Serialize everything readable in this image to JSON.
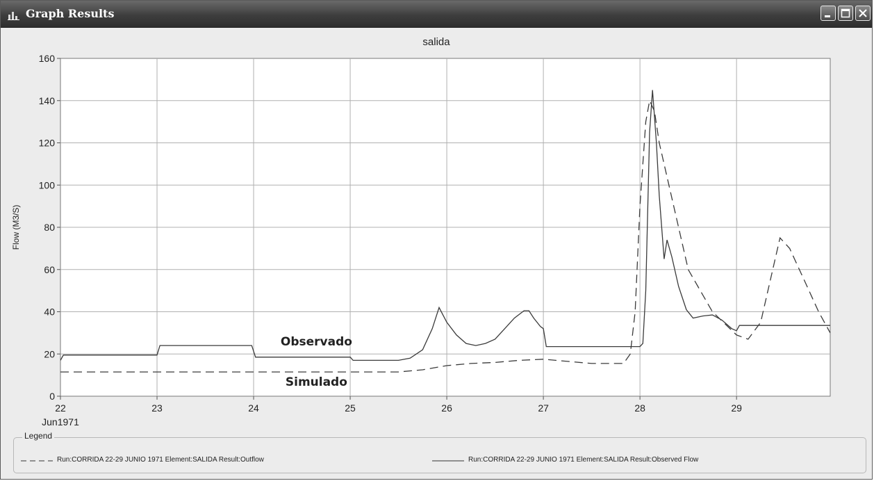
{
  "window": {
    "title": "Graph Results",
    "controls": {
      "minimize": "minimize",
      "maximize": "maximize",
      "close": "close"
    }
  },
  "legend": {
    "title": "Legend",
    "items": [
      {
        "label": "Run:CORRIDA 22-29 JUNIO 1971 Element:SALIDA Result:Outflow",
        "style": "dashed"
      },
      {
        "label": "Run:CORRIDA 22-29 JUNIO 1971 Element:SALIDA Result:Observed Flow",
        "style": "solid"
      }
    ]
  },
  "chart_data": {
    "type": "line",
    "title": "salida",
    "xlabel": "",
    "ylabel": "Flow (M3/S)",
    "x_tick_labels": [
      "22",
      "23",
      "24",
      "25",
      "26",
      "27",
      "28",
      "29"
    ],
    "x_sub_label": "Jun1971",
    "xlim": [
      22,
      29.97
    ],
    "ylim": [
      0,
      160
    ],
    "y_ticks": [
      0,
      20,
      40,
      60,
      80,
      100,
      120,
      140,
      160
    ],
    "grid": true,
    "annotations": [
      {
        "text": "Observado",
        "x": 24.65,
        "y": 24
      },
      {
        "text": "Simulado",
        "x": 24.65,
        "y": 5
      }
    ],
    "series": [
      {
        "name": "Run:CORRIDA 22-29 JUNIO 1971 Element:SALIDA Result:Outflow",
        "style": "dashed",
        "x": [
          22,
          25.5,
          25.75,
          26.0,
          26.25,
          26.5,
          26.75,
          27.0,
          27.25,
          27.5,
          27.83,
          27.9,
          27.95,
          28.0,
          28.06,
          28.1,
          28.15,
          28.2,
          28.3,
          28.5,
          28.75,
          29.0,
          29.12,
          29.25,
          29.35,
          29.45,
          29.55,
          29.7,
          29.85,
          29.97
        ],
        "y": [
          11.5,
          11.5,
          12.5,
          14.5,
          15.5,
          16,
          17,
          17.5,
          16.5,
          15.5,
          15.5,
          20,
          40,
          90,
          130,
          140,
          135,
          120,
          100,
          60,
          40,
          29,
          27,
          35,
          55,
          75,
          70,
          55,
          40,
          30
        ]
      },
      {
        "name": "Run:CORRIDA 22-29 JUNIO 1971 Element:SALIDA Result:Observed Flow",
        "style": "solid",
        "x": [
          22,
          22.03,
          23.0,
          23.03,
          23.98,
          24.02,
          25.0,
          25.03,
          25.5,
          25.62,
          25.75,
          25.85,
          25.92,
          26.0,
          26.1,
          26.2,
          26.3,
          26.4,
          26.5,
          26.6,
          26.7,
          26.8,
          26.85,
          26.9,
          26.97,
          27.0,
          27.03,
          27.5,
          27.9,
          28.0,
          28.03,
          28.06,
          28.1,
          28.13,
          28.17,
          28.2,
          28.25,
          28.28,
          28.33,
          28.4,
          28.48,
          28.55,
          28.65,
          28.75,
          28.85,
          28.95,
          29.0,
          29.03,
          29.97
        ],
        "y": [
          17,
          19.5,
          19.5,
          24,
          24,
          18.5,
          18.5,
          17,
          17,
          18,
          22,
          32,
          42,
          35,
          29,
          25,
          24,
          25,
          27,
          32,
          37,
          40.5,
          40.5,
          37,
          33,
          32,
          23.5,
          23.5,
          23.5,
          23.5,
          25,
          50,
          125,
          145,
          120,
          95,
          65,
          74,
          66,
          52,
          41,
          37,
          38,
          38.5,
          36,
          32,
          31,
          33.5,
          33.5
        ]
      }
    ]
  }
}
